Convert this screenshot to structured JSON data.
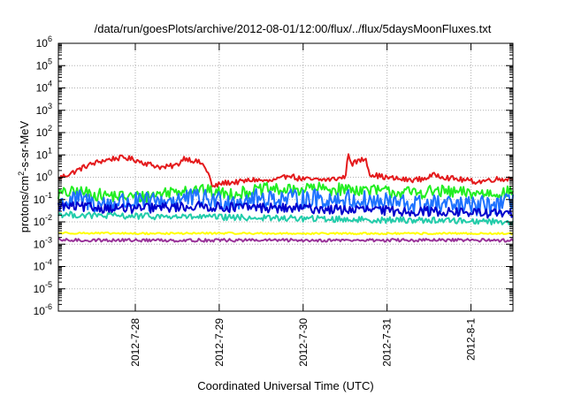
{
  "chart_data": {
    "type": "line",
    "title": "/data/run/goesPlots/archive/2012-08-01/12:00/flux/../flux/5daysMoonFluxes.txt",
    "xlabel": "Coordinated Universal Time (UTC)",
    "ylabel": {
      "prefix": "protons/cm",
      "sup": "2",
      "suffix": "-s-sr-MeV"
    },
    "y_scale": "log",
    "ylim": [
      1e-06,
      1000000.0
    ],
    "y_ticks": [
      {
        "value": 1e-06,
        "base": "10",
        "exp": "-6"
      },
      {
        "value": 1e-05,
        "base": "10",
        "exp": "-5"
      },
      {
        "value": 0.0001,
        "base": "10",
        "exp": "-4"
      },
      {
        "value": 0.001,
        "base": "10",
        "exp": "-3"
      },
      {
        "value": 0.01,
        "base": "10",
        "exp": "-2"
      },
      {
        "value": 0.1,
        "base": "10",
        "exp": "-1"
      },
      {
        "value": 1,
        "base": "10",
        "exp": "0"
      },
      {
        "value": 10,
        "base": "10",
        "exp": "1"
      },
      {
        "value": 100,
        "base": "10",
        "exp": "2"
      },
      {
        "value": 1000,
        "base": "10",
        "exp": "3"
      },
      {
        "value": 10000,
        "base": "10",
        "exp": "4"
      },
      {
        "value": 100000,
        "base": "10",
        "exp": "5"
      },
      {
        "value": 1000000,
        "base": "10",
        "exp": "6"
      }
    ],
    "xlim": [
      "2012-07-27T02:00",
      "2012-08-01T12:00"
    ],
    "x_ticks": [
      {
        "value": "2012-07-28T00:00",
        "label": "2012-7-28"
      },
      {
        "value": "2012-07-29T00:00",
        "label": "2012-7-29"
      },
      {
        "value": "2012-07-30T00:00",
        "label": "2012-7-30"
      },
      {
        "value": "2012-07-31T00:00",
        "label": "2012-7-31"
      },
      {
        "value": "2012-08-01T00:00",
        "label": "2012-8-1"
      }
    ],
    "grid": true,
    "series": [
      {
        "color": "#e41a1c",
        "points": [
          [
            "2012-07-27T02:00",
            0.9
          ],
          [
            "2012-07-27T06:00",
            1.6
          ],
          [
            "2012-07-27T10:00",
            3.2
          ],
          [
            "2012-07-27T14:00",
            5.2
          ],
          [
            "2012-07-27T18:00",
            7.0
          ],
          [
            "2012-07-27T21:00",
            7.5
          ],
          [
            "2012-07-28T00:00",
            6.0
          ],
          [
            "2012-07-28T04:00",
            3.8
          ],
          [
            "2012-07-28T08:00",
            2.7
          ],
          [
            "2012-07-28T12:00",
            3.5
          ],
          [
            "2012-07-28T14:00",
            7.5
          ],
          [
            "2012-07-28T16:00",
            6.0
          ],
          [
            "2012-07-28T19:00",
            4.2
          ],
          [
            "2012-07-28T21:00",
            1.5
          ],
          [
            "2012-07-28T22:00",
            0.35
          ],
          [
            "2012-07-29T01:00",
            0.55
          ],
          [
            "2012-07-29T06:00",
            0.62
          ],
          [
            "2012-07-29T10:00",
            0.78
          ],
          [
            "2012-07-29T14:00",
            0.65
          ],
          [
            "2012-07-29T18:00",
            0.85
          ],
          [
            "2012-07-29T20:00",
            1.4
          ],
          [
            "2012-07-29T22:00",
            0.9
          ],
          [
            "2012-07-30T03:00",
            0.75
          ],
          [
            "2012-07-30T08:00",
            0.8
          ],
          [
            "2012-07-30T12:00",
            1.0
          ],
          [
            "2012-07-30T13:00",
            10.5
          ],
          [
            "2012-07-30T14:00",
            4.0
          ],
          [
            "2012-07-30T16:00",
            5.5
          ],
          [
            "2012-07-30T18:00",
            7.0
          ],
          [
            "2012-07-30T19:00",
            1.4
          ],
          [
            "2012-07-31T00:00",
            0.95
          ],
          [
            "2012-07-31T06:00",
            0.75
          ],
          [
            "2012-07-31T10:00",
            0.82
          ],
          [
            "2012-07-31T14:00",
            1.3
          ],
          [
            "2012-07-31T18:00",
            0.9
          ],
          [
            "2012-07-31T22:00",
            0.75
          ],
          [
            "2012-08-01T02:00",
            0.62
          ],
          [
            "2012-08-01T06:00",
            0.8
          ],
          [
            "2012-08-01T10:00",
            0.85
          ],
          [
            "2012-08-01T12:00",
            0.9
          ]
        ]
      },
      {
        "color": "#22ee22",
        "points": [
          [
            "2012-07-27T02:00",
            0.18
          ],
          [
            "2012-07-27T08:00",
            0.22
          ],
          [
            "2012-07-27T14:00",
            0.16
          ],
          [
            "2012-07-27T20:00",
            0.14
          ],
          [
            "2012-07-28T02:00",
            0.13
          ],
          [
            "2012-07-28T08:00",
            0.2
          ],
          [
            "2012-07-28T14:00",
            0.3
          ],
          [
            "2012-07-28T20:00",
            0.25
          ],
          [
            "2012-07-29T02:00",
            0.18
          ],
          [
            "2012-07-29T08:00",
            0.22
          ],
          [
            "2012-07-29T14:00",
            0.3
          ],
          [
            "2012-07-29T20:00",
            0.25
          ],
          [
            "2012-07-30T02:00",
            0.33
          ],
          [
            "2012-07-30T08:00",
            0.28
          ],
          [
            "2012-07-30T14:00",
            0.3
          ],
          [
            "2012-07-30T20:00",
            0.25
          ],
          [
            "2012-07-31T02:00",
            0.22
          ],
          [
            "2012-07-31T08:00",
            0.2
          ],
          [
            "2012-07-31T14:00",
            0.24
          ],
          [
            "2012-07-31T20:00",
            0.2
          ],
          [
            "2012-08-01T02:00",
            0.19
          ],
          [
            "2012-08-01T08:00",
            0.2
          ],
          [
            "2012-08-01T12:00",
            0.22
          ]
        ]
      },
      {
        "color": "#1e72ff",
        "points": [
          [
            "2012-07-27T02:00",
            0.07
          ],
          [
            "2012-07-27T08:00",
            0.1
          ],
          [
            "2012-07-27T14:00",
            0.06
          ],
          [
            "2012-07-27T20:00",
            0.08
          ],
          [
            "2012-07-28T02:00",
            0.07
          ],
          [
            "2012-07-28T08:00",
            0.09
          ],
          [
            "2012-07-28T14:00",
            0.11
          ],
          [
            "2012-07-28T20:00",
            0.1
          ],
          [
            "2012-07-29T02:00",
            0.09
          ],
          [
            "2012-07-29T08:00",
            0.1
          ],
          [
            "2012-07-29T14:00",
            0.12
          ],
          [
            "2012-07-29T20:00",
            0.1
          ],
          [
            "2012-07-30T02:00",
            0.11
          ],
          [
            "2012-07-30T08:00",
            0.1
          ],
          [
            "2012-07-30T14:00",
            0.1
          ],
          [
            "2012-07-30T20:00",
            0.08
          ],
          [
            "2012-07-31T02:00",
            0.07
          ],
          [
            "2012-07-31T08:00",
            0.06
          ],
          [
            "2012-07-31T14:00",
            0.06
          ],
          [
            "2012-07-31T20:00",
            0.05
          ],
          [
            "2012-08-01T02:00",
            0.05
          ],
          [
            "2012-08-01T08:00",
            0.06
          ],
          [
            "2012-08-01T12:00",
            0.07
          ]
        ]
      },
      {
        "color": "#0000cc",
        "points": [
          [
            "2012-07-27T02:00",
            0.05
          ],
          [
            "2012-07-27T10:00",
            0.045
          ],
          [
            "2012-07-27T18:00",
            0.04
          ],
          [
            "2012-07-28T02:00",
            0.04
          ],
          [
            "2012-07-28T10:00",
            0.045
          ],
          [
            "2012-07-28T18:00",
            0.05
          ],
          [
            "2012-07-29T02:00",
            0.045
          ],
          [
            "2012-07-29T10:00",
            0.045
          ],
          [
            "2012-07-29T18:00",
            0.04
          ],
          [
            "2012-07-30T02:00",
            0.04
          ],
          [
            "2012-07-30T10:00",
            0.035
          ],
          [
            "2012-07-30T18:00",
            0.035
          ],
          [
            "2012-07-31T02:00",
            0.03
          ],
          [
            "2012-07-31T10:00",
            0.03
          ],
          [
            "2012-07-31T18:00",
            0.028
          ],
          [
            "2012-08-01T02:00",
            0.025
          ],
          [
            "2012-08-01T12:00",
            0.023
          ]
        ]
      },
      {
        "color": "#22ccaa",
        "points": [
          [
            "2012-07-27T02:00",
            0.022
          ],
          [
            "2012-07-27T12:00",
            0.019
          ],
          [
            "2012-07-28T00:00",
            0.018
          ],
          [
            "2012-07-28T12:00",
            0.017
          ],
          [
            "2012-07-29T00:00",
            0.016
          ],
          [
            "2012-07-29T12:00",
            0.015
          ],
          [
            "2012-07-30T00:00",
            0.014
          ],
          [
            "2012-07-30T12:00",
            0.013
          ],
          [
            "2012-07-31T00:00",
            0.012
          ],
          [
            "2012-07-31T12:00",
            0.012
          ],
          [
            "2012-08-01T00:00",
            0.011
          ],
          [
            "2012-08-01T12:00",
            0.01
          ]
        ]
      },
      {
        "color": "#ffff00",
        "points": [
          [
            "2012-07-27T02:00",
            0.0032
          ],
          [
            "2012-07-28T00:00",
            0.003
          ],
          [
            "2012-07-29T00:00",
            0.0031
          ],
          [
            "2012-07-30T00:00",
            0.003
          ],
          [
            "2012-07-31T00:00",
            0.003
          ],
          [
            "2012-08-01T00:00",
            0.003
          ],
          [
            "2012-08-01T12:00",
            0.003
          ]
        ]
      },
      {
        "color": "#993399",
        "points": [
          [
            "2012-07-27T02:00",
            0.0015
          ],
          [
            "2012-07-28T00:00",
            0.0015
          ],
          [
            "2012-07-29T00:00",
            0.0015
          ],
          [
            "2012-07-30T00:00",
            0.0015
          ],
          [
            "2012-07-31T00:00",
            0.0015
          ],
          [
            "2012-08-01T00:00",
            0.0015
          ],
          [
            "2012-08-01T12:00",
            0.0015
          ]
        ]
      }
    ]
  }
}
